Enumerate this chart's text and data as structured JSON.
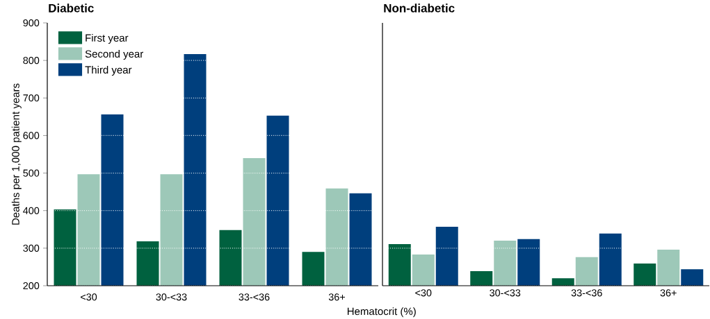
{
  "chart_data": [
    {
      "type": "bar",
      "title": "Diabetic",
      "ylabel": "Deaths per 1,000 patient years",
      "xlabel": "Hematocrit (%)",
      "categories": [
        "<30",
        "30-<33",
        "33-<36",
        "36+"
      ],
      "series": [
        {
          "name": "First year",
          "color": "#00613f",
          "values": [
            403,
            318,
            348,
            290
          ]
        },
        {
          "name": "Second year",
          "color": "#9dc8b8",
          "values": [
            497,
            497,
            540,
            459
          ]
        },
        {
          "name": "Third year",
          "color": "#003f7d",
          "values": [
            656,
            817,
            653,
            446
          ]
        }
      ],
      "ylim": [
        200,
        900
      ],
      "yticks": [
        200,
        300,
        400,
        500,
        600,
        700,
        800,
        900
      ],
      "grid": "y",
      "legend": "top left"
    },
    {
      "type": "bar",
      "title": "Non-diabetic",
      "categories": [
        "<30",
        "30-<33",
        "33-<36",
        "36+"
      ],
      "series": [
        {
          "color": "#00613f",
          "values": [
            311,
            239,
            220,
            259
          ]
        },
        {
          "color": "#9dc8b8",
          "values": [
            283,
            320,
            276,
            296
          ]
        },
        {
          "color": "#003f7d",
          "values": [
            357,
            324,
            339,
            244
          ]
        }
      ],
      "ylim": [
        200,
        900
      ],
      "yticks": [
        200,
        300,
        400,
        500,
        600,
        700,
        800,
        900
      ],
      "grid": "y",
      "tick_labels": "x",
      "legend": false
    }
  ]
}
